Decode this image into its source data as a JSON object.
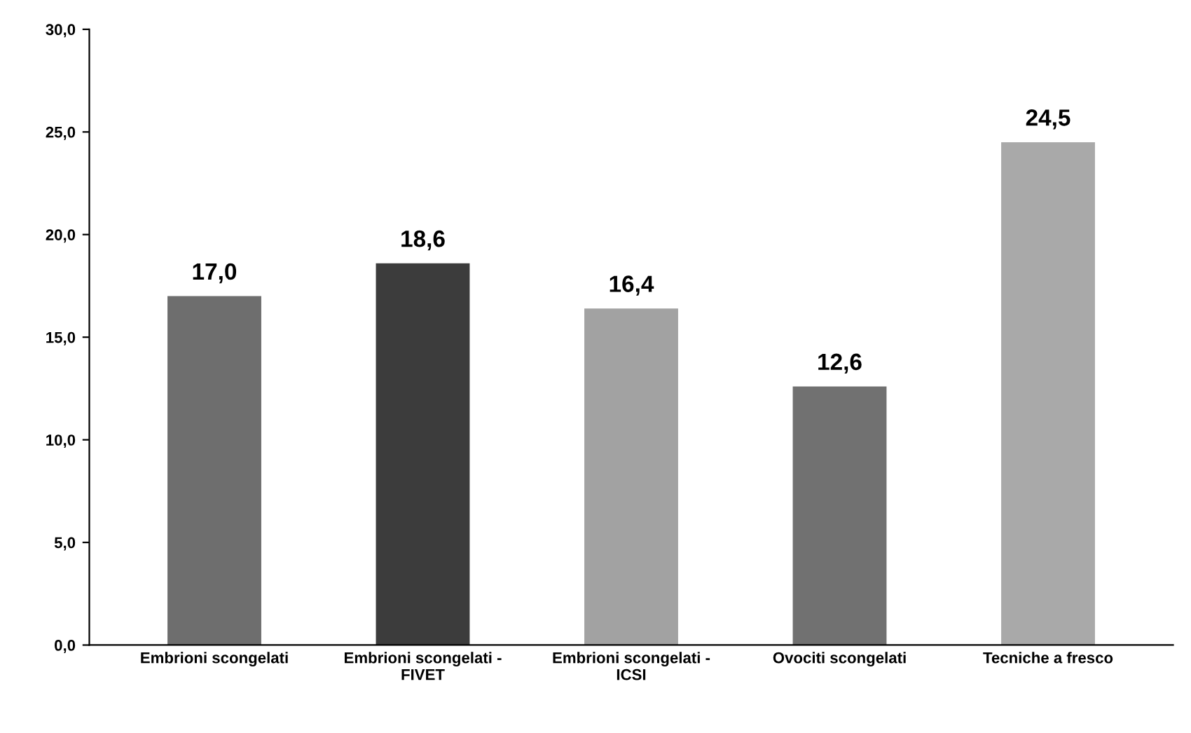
{
  "chart_data": {
    "type": "bar",
    "categories": [
      "Embrioni scongelati",
      "Embrioni scongelati -\nFIVET",
      "Embrioni scongelati -\nICSI",
      "Ovociti scongelati",
      "Tecniche a fresco"
    ],
    "values": [
      17.0,
      18.6,
      16.4,
      12.6,
      24.5
    ],
    "value_labels": [
      "17,0",
      "18,6",
      "16,4",
      "12,6",
      "24,5"
    ],
    "colors": [
      "#6e6e6e",
      "#3c3c3c",
      "#a2a2a2",
      "#717171",
      "#a9a9a9"
    ],
    "ylim": [
      0,
      30
    ],
    "yticks": [
      {
        "value": 0,
        "label": "0,0"
      },
      {
        "value": 5,
        "label": "5,0"
      },
      {
        "value": 10,
        "label": "10,0"
      },
      {
        "value": 15,
        "label": "15,0"
      },
      {
        "value": 20,
        "label": "20,0"
      },
      {
        "value": 25,
        "label": "25,0"
      },
      {
        "value": 30,
        "label": "30,0"
      }
    ],
    "grid": false,
    "legend": false
  }
}
